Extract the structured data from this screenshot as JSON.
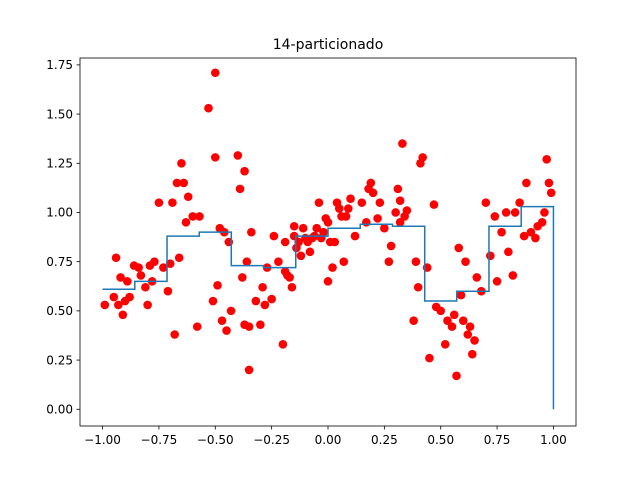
{
  "chart_data": {
    "type": "scatter",
    "title": "14-particionado",
    "xlabel": "",
    "ylabel": "",
    "xlim": [
      -1.1,
      1.1
    ],
    "ylim": [
      -0.085,
      1.785
    ],
    "xticks": [
      -1.0,
      -0.75,
      -0.5,
      -0.25,
      0.0,
      0.25,
      0.5,
      0.75,
      1.0
    ],
    "xtick_labels": [
      "−1.00",
      "−0.75",
      "−0.50",
      "−0.25",
      "0.00",
      "0.25",
      "0.50",
      "0.75",
      "1.00"
    ],
    "yticks": [
      0.0,
      0.25,
      0.5,
      0.75,
      1.0,
      1.25,
      1.5,
      1.75
    ],
    "ytick_labels": [
      "0.00",
      "0.25",
      "0.50",
      "0.75",
      "1.00",
      "1.25",
      "1.50",
      "1.75"
    ],
    "grid": false,
    "colors": {
      "points": "#ff0000",
      "step_line": "#1f77b4",
      "axes": "#000000"
    },
    "series": [
      {
        "name": "data",
        "kind": "scatter",
        "x": [
          -0.99,
          -0.95,
          -0.94,
          -0.93,
          -0.92,
          -0.91,
          -0.9,
          -0.89,
          -0.88,
          -0.86,
          -0.84,
          -0.83,
          -0.81,
          -0.8,
          -0.79,
          -0.78,
          -0.77,
          -0.75,
          -0.73,
          -0.71,
          -0.7,
          -0.69,
          -0.68,
          -0.67,
          -0.66,
          -0.65,
          -0.64,
          -0.63,
          -0.62,
          -0.6,
          -0.58,
          -0.57,
          -0.53,
          -0.51,
          -0.5,
          -0.5,
          -0.49,
          -0.48,
          -0.47,
          -0.46,
          -0.45,
          -0.44,
          -0.43,
          -0.4,
          -0.39,
          -0.38,
          -0.37,
          -0.37,
          -0.36,
          -0.35,
          -0.35,
          -0.34,
          -0.32,
          -0.3,
          -0.29,
          -0.28,
          -0.27,
          -0.25,
          -0.24,
          -0.22,
          -0.2,
          -0.19,
          -0.19,
          -0.18,
          -0.17,
          -0.16,
          -0.15,
          -0.15,
          -0.14,
          -0.13,
          -0.12,
          -0.11,
          -0.1,
          -0.09,
          -0.08,
          -0.07,
          -0.06,
          -0.05,
          -0.04,
          -0.03,
          -0.02,
          -0.01,
          0.0,
          0.0,
          0.01,
          0.02,
          0.03,
          0.04,
          0.05,
          0.06,
          0.07,
          0.08,
          0.09,
          0.1,
          0.12,
          0.15,
          0.17,
          0.18,
          0.19,
          0.2,
          0.22,
          0.23,
          0.25,
          0.27,
          0.28,
          0.3,
          0.31,
          0.32,
          0.32,
          0.33,
          0.34,
          0.35,
          0.38,
          0.39,
          0.4,
          0.41,
          0.42,
          0.44,
          0.45,
          0.47,
          0.48,
          0.5,
          0.52,
          0.53,
          0.55,
          0.56,
          0.57,
          0.58,
          0.59,
          0.6,
          0.61,
          0.62,
          0.63,
          0.64,
          0.65,
          0.66,
          0.68,
          0.7,
          0.72,
          0.74,
          0.75,
          0.77,
          0.79,
          0.8,
          0.82,
          0.83,
          0.85,
          0.87,
          0.88,
          0.9,
          0.92,
          0.93,
          0.95,
          0.96,
          0.97,
          0.98,
          0.99
        ],
        "y": [
          0.53,
          0.57,
          0.77,
          0.53,
          0.67,
          0.48,
          0.55,
          0.65,
          0.57,
          0.73,
          0.72,
          0.68,
          0.62,
          0.53,
          0.73,
          0.65,
          0.75,
          1.05,
          0.72,
          0.6,
          0.74,
          1.05,
          0.38,
          1.15,
          0.77,
          1.25,
          1.15,
          0.95,
          1.08,
          0.98,
          0.42,
          0.98,
          1.53,
          0.55,
          1.71,
          1.28,
          0.63,
          0.92,
          0.45,
          0.9,
          0.4,
          0.85,
          0.5,
          1.29,
          1.12,
          0.67,
          0.43,
          1.21,
          0.75,
          0.42,
          0.2,
          0.9,
          0.55,
          0.43,
          0.62,
          0.53,
          0.72,
          0.56,
          0.88,
          0.75,
          0.33,
          0.7,
          0.85,
          0.68,
          0.67,
          0.62,
          0.88,
          0.93,
          0.82,
          0.85,
          0.78,
          0.92,
          0.87,
          0.85,
          0.8,
          0.87,
          0.88,
          0.92,
          1.05,
          0.87,
          0.9,
          0.97,
          0.95,
          0.65,
          0.85,
          0.72,
          0.85,
          1.05,
          1.02,
          0.98,
          0.75,
          0.98,
          1.02,
          1.07,
          0.88,
          1.05,
          0.95,
          1.12,
          1.15,
          1.1,
          0.97,
          1.05,
          0.92,
          0.75,
          0.83,
          1.0,
          1.12,
          1.06,
          0.95,
          1.35,
          0.98,
          1.01,
          0.45,
          0.75,
          0.62,
          1.25,
          1.28,
          0.72,
          0.26,
          1.04,
          0.52,
          0.5,
          0.33,
          0.45,
          0.42,
          0.48,
          0.17,
          0.82,
          0.58,
          0.45,
          0.75,
          0.38,
          0.42,
          0.28,
          0.35,
          0.67,
          0.6,
          1.05,
          0.78,
          0.98,
          0.65,
          0.9,
          1.0,
          0.8,
          0.68,
          1.0,
          1.05,
          0.88,
          1.15,
          0.9,
          0.87,
          0.93,
          0.95,
          1.0,
          1.27,
          1.15,
          1.1
        ]
      },
      {
        "name": "14-particionado",
        "kind": "step",
        "edges": [
          -1.0,
          -0.857,
          -0.714,
          -0.571,
          -0.429,
          -0.286,
          -0.143,
          0.0,
          0.143,
          0.286,
          0.429,
          0.571,
          0.714,
          0.857,
          1.0
        ],
        "levels": [
          0.61,
          0.65,
          0.88,
          0.9,
          0.73,
          0.72,
          0.88,
          0.92,
          0.94,
          0.93,
          0.55,
          0.6,
          0.93,
          1.03
        ],
        "end_value": 0.0
      }
    ]
  }
}
